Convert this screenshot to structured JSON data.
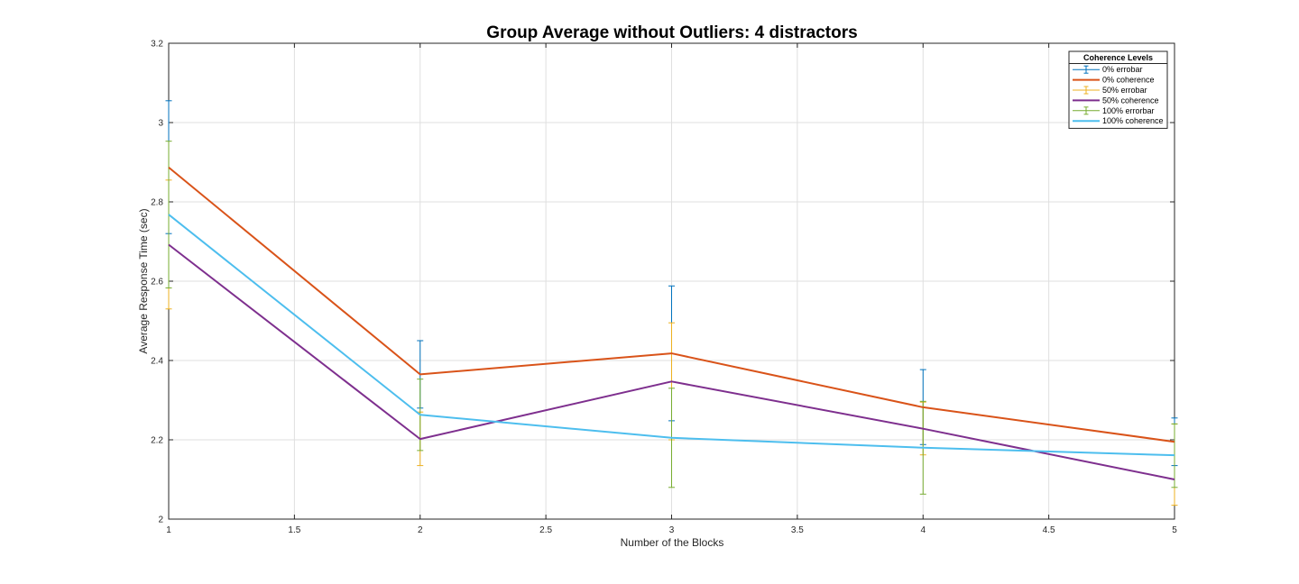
{
  "chart_data": {
    "type": "line",
    "title": "Group Average without Outliers: 4 distractors",
    "xlabel": "Number of the Blocks",
    "ylabel": "Average Response Time (sec)",
    "xlim": [
      1,
      5
    ],
    "ylim": [
      2,
      3.2
    ],
    "xticks": [
      1,
      1.5,
      2,
      2.5,
      3,
      3.5,
      4,
      4.5,
      5
    ],
    "xtick_labels": [
      "1",
      "1.5",
      "2",
      "2.5",
      "3",
      "3.5",
      "4",
      "4.5",
      "5"
    ],
    "yticks": [
      2,
      2.2,
      2.4,
      2.6,
      2.8,
      3,
      3.2
    ],
    "ytick_labels": [
      "2",
      "2.2",
      "2.4",
      "2.6",
      "2.8",
      "3",
      "3.2"
    ],
    "grid": true,
    "legend_title": "Coherence Levels",
    "legend_position": "top-right",
    "x": [
      1,
      2,
      3,
      4,
      5
    ],
    "series": [
      {
        "name": "0% coherence",
        "errorbar_name": "0% errobar",
        "color": "#D95319",
        "errorbar_color": "#0072BD",
        "values": [
          2.887,
          2.365,
          2.418,
          2.282,
          2.195
        ],
        "lower": [
          2.72,
          2.28,
          2.248,
          2.188,
          2.135
        ],
        "upper": [
          3.055,
          2.45,
          2.588,
          2.377,
          2.255
        ]
      },
      {
        "name": "50% coherence",
        "errorbar_name": "50% errobar",
        "color": "#7E2F8E",
        "errorbar_color": "#EDB120",
        "values": [
          2.692,
          2.202,
          2.347,
          2.228,
          2.1
        ],
        "lower": [
          2.53,
          2.135,
          2.2,
          2.162,
          2.035
        ],
        "upper": [
          2.855,
          2.27,
          2.495,
          2.295,
          2.24
        ]
      },
      {
        "name": "100% coherence",
        "errorbar_name": "100% errorbar",
        "color": "#4DBEEE",
        "errorbar_color": "#77AC30",
        "values": [
          2.768,
          2.263,
          2.205,
          2.18,
          2.161
        ],
        "lower": [
          2.583,
          2.173,
          2.08,
          2.063,
          2.08
        ],
        "upper": [
          2.953,
          2.353,
          2.33,
          2.297,
          2.24
        ]
      }
    ]
  }
}
